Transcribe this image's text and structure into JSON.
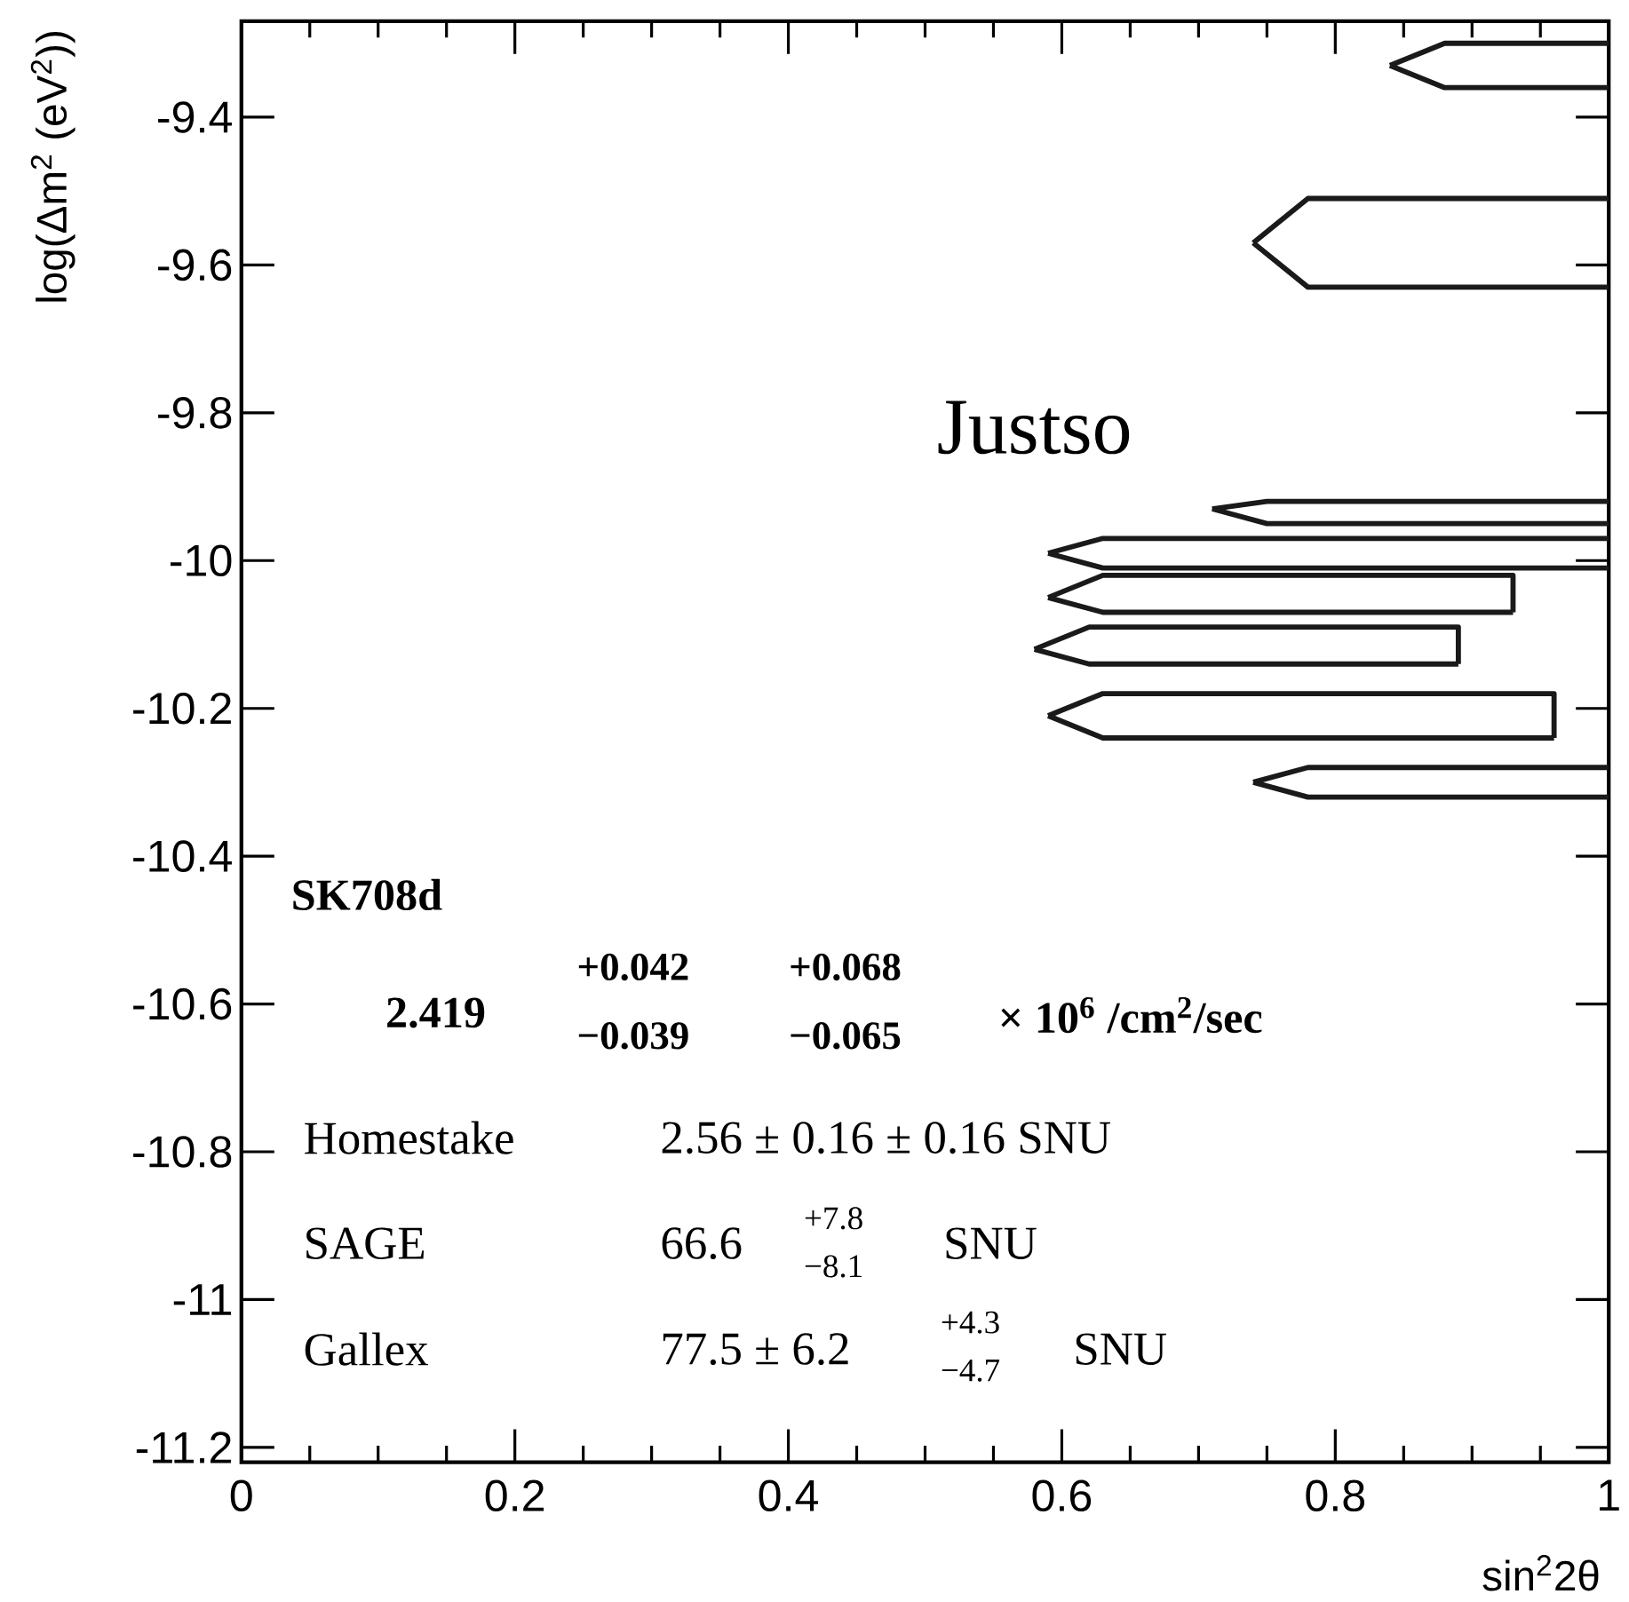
{
  "chart_data": {
    "type": "line",
    "xlabel": "sin$^{2}$2θ",
    "ylabel": "log(Δm$^{2}$ (eV$^{2}$))",
    "xlim": [
      0,
      1
    ],
    "ylim": [
      -11.22,
      -9.27
    ],
    "xticks": [
      0,
      0.2,
      0.4,
      0.6,
      0.8,
      1
    ],
    "yticks": [
      -11.2,
      -11,
      -10.8,
      -10.6,
      -10.4,
      -10.2,
      -10,
      -9.8,
      -9.6,
      -9.4
    ],
    "marker": "none",
    "line_style": "solid",
    "series": [
      {
        "color": "#1a1a1a",
        "x": [
          0.84,
          0.88,
          1
        ],
        "values": [
          -9.33,
          -9.3,
          -9.3
        ]
      },
      {
        "color": "#1a1a1a",
        "x": [
          0.84,
          0.88,
          1
        ],
        "values": [
          -9.33,
          -9.36,
          -9.36
        ]
      },
      {
        "color": "#1a1a1a",
        "x": [
          0.74,
          0.78,
          1
        ],
        "values": [
          -9.57,
          -9.51,
          -9.51
        ]
      },
      {
        "color": "#1a1a1a",
        "x": [
          0.74,
          0.78,
          1
        ],
        "values": [
          -9.57,
          -9.63,
          -9.63
        ]
      },
      {
        "color": "#1a1a1a",
        "x": [
          0.71,
          0.75,
          1
        ],
        "values": [
          -9.93,
          -9.92,
          -9.92
        ]
      },
      {
        "color": "#1a1a1a",
        "x": [
          0.71,
          0.75,
          1
        ],
        "values": [
          -9.93,
          -9.95,
          -9.95
        ]
      },
      {
        "color": "#1a1a1a",
        "x": [
          0.59,
          0.63,
          1
        ],
        "values": [
          -9.99,
          -9.97,
          -9.97
        ]
      },
      {
        "color": "#1a1a1a",
        "x": [
          0.59,
          0.63,
          1
        ],
        "values": [
          -9.99,
          -10.01,
          -10.01
        ]
      },
      {
        "color": "#1a1a1a",
        "x": [
          0.59,
          0.63,
          0.93,
          0.93
        ],
        "values": [
          -10.05,
          -10.02,
          -10.02,
          -10.07
        ]
      },
      {
        "color": "#1a1a1a",
        "x": [
          0.59,
          0.63,
          0.93
        ],
        "values": [
          -10.05,
          -10.07,
          -10.07
        ]
      },
      {
        "color": "#1a1a1a",
        "x": [
          0.58,
          0.62,
          0.89,
          0.89
        ],
        "values": [
          -10.12,
          -10.09,
          -10.09,
          -10.14
        ]
      },
      {
        "color": "#1a1a1a",
        "x": [
          0.58,
          0.62,
          0.89
        ],
        "values": [
          -10.12,
          -10.14,
          -10.14
        ]
      },
      {
        "color": "#1a1a1a",
        "x": [
          0.59,
          0.63,
          0.96,
          0.96
        ],
        "values": [
          -10.21,
          -10.18,
          -10.18,
          -10.24
        ]
      },
      {
        "color": "#1a1a1a",
        "x": [
          0.59,
          0.63,
          0.96
        ],
        "values": [
          -10.21,
          -10.24,
          -10.24
        ]
      },
      {
        "color": "#1a1a1a",
        "x": [
          0.74,
          0.78,
          1
        ],
        "values": [
          -10.3,
          -10.28,
          -10.28
        ]
      },
      {
        "color": "#1a1a1a",
        "x": [
          0.74,
          0.78,
          1
        ],
        "values": [
          -10.3,
          -10.32,
          -10.32
        ]
      }
    ],
    "annotations": [
      "Justso",
      "SK708d",
      "2.419",
      "+0.042",
      "−0.039",
      "+0.068",
      "−0.065",
      "× 10$^{6}$  /cm$^{2}$/sec",
      "Homestake",
      "2.56 ± 0.16 ± 0.16 SNU",
      "SAGE",
      "66.6",
      "+7.8",
      "−8.1",
      "SNU",
      "Gallex",
      "77.5 ± 6.2",
      "+4.3",
      "−4.7",
      "SNU"
    ]
  }
}
